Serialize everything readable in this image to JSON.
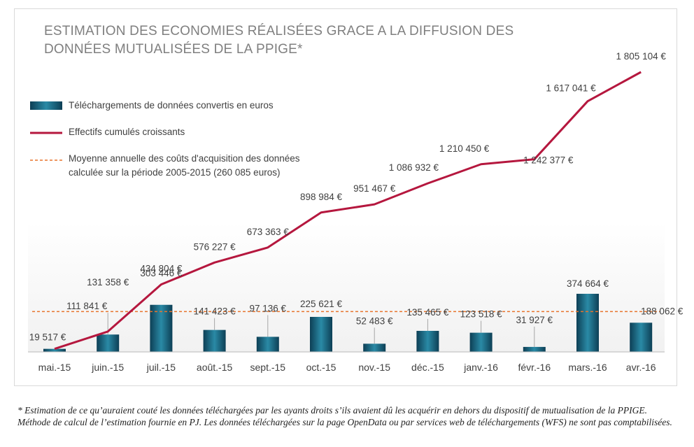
{
  "chart_data": {
    "type": "bar+line",
    "title_lines": [
      "ESTIMATION DES ECONOMIES RÉALISÉES GRACE A LA DIFFUSION DES",
      "DONNÉES MUTUALISÉES DE LA PPIGE*"
    ],
    "categories": [
      "mai.-15",
      "juin.-15",
      "juil.-15",
      "août.-15",
      "sept.-15",
      "oct.-15",
      "nov.-15",
      "déc.-15",
      "janv.-16",
      "févr.-16",
      "mars.-16",
      "avr.-16"
    ],
    "series": [
      {
        "name": "Téléchargements de données convertis en euros",
        "type": "bar",
        "color": "#1f6f8b",
        "values": [
          19517,
          111841,
          303446,
          141423,
          97136,
          225621,
          52483,
          135465,
          123518,
          31927,
          374664,
          188062
        ],
        "labels": [
          "19 517 €",
          "111 841 €",
          "303 446 €",
          "141 423 €",
          "97 136 €",
          "225 621 €",
          "52 483 €",
          "135 465 €",
          "123 518 €",
          "31 927 €",
          "374 664 €",
          "188 062 €"
        ]
      },
      {
        "name": "Effectifs cumulés croissants",
        "type": "line",
        "color": "#b5173e",
        "values": [
          19517,
          131358,
          434804,
          576227,
          673363,
          898984,
          951467,
          1086932,
          1210450,
          1242377,
          1617041,
          1805104
        ],
        "labels": [
          "19 517 €",
          "131 358 €",
          "434 804 €",
          "576 227 €",
          "673 363 €",
          "898 984 €",
          "951 467 €",
          "1 086 932 €",
          "1 210 450 €",
          "1 242 377 €",
          "1 617 041 €",
          "1 805 104 €"
        ]
      }
    ],
    "reference_line": {
      "name_lines": [
        "Moyenne annuelle des coûts d'acquisition des données",
        "calculée sur la période 2005-2015 (260 085 euros)"
      ],
      "value": 260085,
      "color": "#e8742c",
      "style": "dashed"
    },
    "ylim": [
      0,
      2000000
    ],
    "grid": false,
    "legend_position": "top-left"
  },
  "footnote": "* Estimation de ce qu’auraient couté les données téléchargées par les ayants droits s’ils avaient dû les acquérir en dehors du dispositif de mutualisation de la PPIGE. Méthode de calcul de l’estimation fournie en PJ. Les données téléchargées sur la page OpenData ou par services web de téléchargements (WFS) ne sont pas comptabilisées."
}
